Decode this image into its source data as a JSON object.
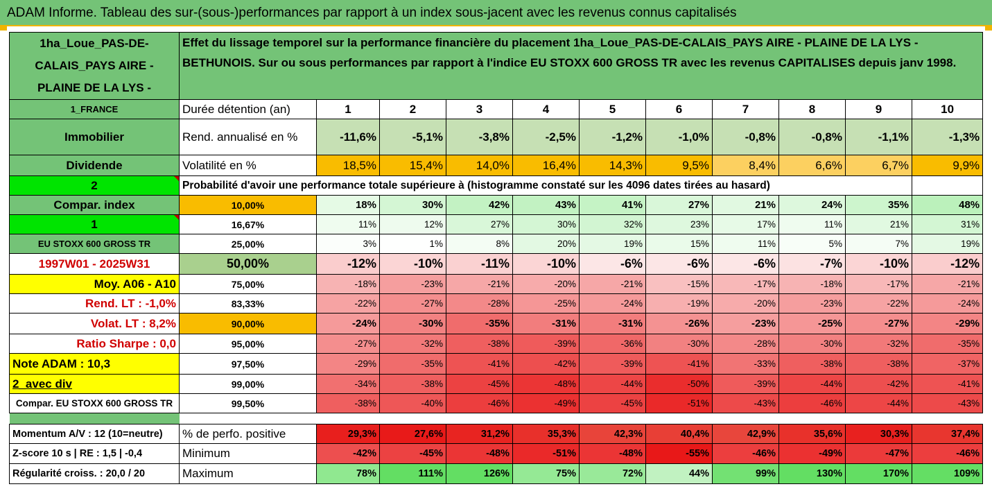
{
  "header": {
    "title": "ADAM Informe. Tableau des sur-(sous-)performances par rapport à un index sous-jacent avec les revenus connus capitalisés"
  },
  "left": {
    "fund_name": "1ha_Loue_PAS-DE-CALAIS_PAYS AIRE - PLAINE DE LA LYS -",
    "country": "1_FRANCE",
    "asset_class": "Immobilier",
    "income_type": "Dividende",
    "option_a": "2",
    "compar_index": "Compar. index",
    "option_b": "1",
    "index_name": "EU STOXX 600 GROSS TR",
    "period": "1997W01 - 2025W31",
    "moy": "Moy. A06 - A10",
    "rend_lt_label": "Rend. LT :",
    "rend_lt_value": "-1,0%",
    "volat_lt_label": "Volat. LT :",
    "volat_lt_value": "8,2%",
    "sharpe_label": "Ratio Sharpe :",
    "sharpe_value": "0,0",
    "note": "Note ADAM : 10,3",
    "avec_div": "2_avec div",
    "compar_full": "Compar. EU STOXX 600 GROSS TR",
    "momentum": "Momentum A/V : 12 (10=neutre)",
    "zscore": "Z-score 10 s | RE : 1,5 | -0,4",
    "regularite": "Régularité croiss. : 20,0 / 20"
  },
  "description": "Effet du lissage temporel sur la performance financière du placement 1ha_Loue_PAS-DE-CALAIS_PAYS AIRE - PLAINE DE LA LYS - BETHUNOIS. Sur ou sous performances par rapport à l'indice EU STOXX 600 GROSS TR avec les revenus CAPITALISES depuis janv 1998.",
  "labels": {
    "duree": "Durée détention (an)",
    "rend": "Rend. annualisé en %",
    "vol": "Volatilité en %",
    "prob": "Probabilité d'avoir une performance totale supérieure à (histogramme constaté sur les 4096 dates tirées au hasard)",
    "perf_pos": "% de perfo. positive",
    "minimum": "Minimum",
    "maximum": "Maximum"
  },
  "years": [
    "1",
    "2",
    "3",
    "4",
    "5",
    "6",
    "7",
    "8",
    "9",
    "10"
  ],
  "rend": [
    "-11,6%",
    "-5,1%",
    "-3,8%",
    "-2,5%",
    "-1,2%",
    "-1,0%",
    "-0,8%",
    "-0,8%",
    "-1,1%",
    "-1,3%"
  ],
  "vol": [
    "18,5%",
    "15,4%",
    "14,0%",
    "16,4%",
    "14,3%",
    "9,5%",
    "8,4%",
    "6,6%",
    "6,7%",
    "9,9%"
  ],
  "percentiles": [
    {
      "p": "10,00%",
      "v": [
        "18%",
        "30%",
        "42%",
        "43%",
        "41%",
        "27%",
        "21%",
        "24%",
        "35%",
        "48%"
      ]
    },
    {
      "p": "16,67%",
      "v": [
        "11%",
        "12%",
        "27%",
        "30%",
        "32%",
        "23%",
        "17%",
        "11%",
        "21%",
        "31%"
      ]
    },
    {
      "p": "25,00%",
      "v": [
        "3%",
        "1%",
        "8%",
        "20%",
        "19%",
        "15%",
        "11%",
        "5%",
        "7%",
        "19%"
      ]
    },
    {
      "p": "50,00%",
      "v": [
        "-12%",
        "-10%",
        "-11%",
        "-10%",
        "-6%",
        "-6%",
        "-6%",
        "-7%",
        "-10%",
        "-12%"
      ]
    },
    {
      "p": "75,00%",
      "v": [
        "-18%",
        "-23%",
        "-21%",
        "-20%",
        "-21%",
        "-15%",
        "-17%",
        "-18%",
        "-17%",
        "-21%"
      ]
    },
    {
      "p": "83,33%",
      "v": [
        "-22%",
        "-27%",
        "-28%",
        "-25%",
        "-24%",
        "-19%",
        "-20%",
        "-23%",
        "-22%",
        "-24%"
      ]
    },
    {
      "p": "90,00%",
      "v": [
        "-24%",
        "-30%",
        "-35%",
        "-31%",
        "-31%",
        "-26%",
        "-23%",
        "-25%",
        "-27%",
        "-29%"
      ]
    },
    {
      "p": "95,00%",
      "v": [
        "-27%",
        "-32%",
        "-38%",
        "-39%",
        "-36%",
        "-30%",
        "-28%",
        "-30%",
        "-32%",
        "-35%"
      ]
    },
    {
      "p": "97,50%",
      "v": [
        "-29%",
        "-35%",
        "-41%",
        "-42%",
        "-39%",
        "-41%",
        "-33%",
        "-38%",
        "-38%",
        "-37%"
      ]
    },
    {
      "p": "99,00%",
      "v": [
        "-34%",
        "-38%",
        "-45%",
        "-48%",
        "-44%",
        "-50%",
        "-39%",
        "-44%",
        "-42%",
        "-41%"
      ]
    },
    {
      "p": "99,50%",
      "v": [
        "-38%",
        "-40%",
        "-46%",
        "-49%",
        "-45%",
        "-51%",
        "-43%",
        "-46%",
        "-44%",
        "-43%"
      ]
    }
  ],
  "perf_pos": [
    "29,3%",
    "27,6%",
    "31,2%",
    "35,3%",
    "42,3%",
    "40,4%",
    "42,9%",
    "35,6%",
    "30,3%",
    "37,4%"
  ],
  "minimum": [
    "-42%",
    "-45%",
    "-48%",
    "-51%",
    "-48%",
    "-55%",
    "-46%",
    "-49%",
    "-47%",
    "-46%"
  ],
  "maximum": [
    "78%",
    "111%",
    "126%",
    "75%",
    "72%",
    "44%",
    "99%",
    "130%",
    "170%",
    "109%"
  ],
  "colors": {
    "header_green": "#74c377",
    "orange": "#f9bc00",
    "yellow": "#ffff00",
    "bright_green": "#00e400",
    "red_text": "#d00000"
  }
}
